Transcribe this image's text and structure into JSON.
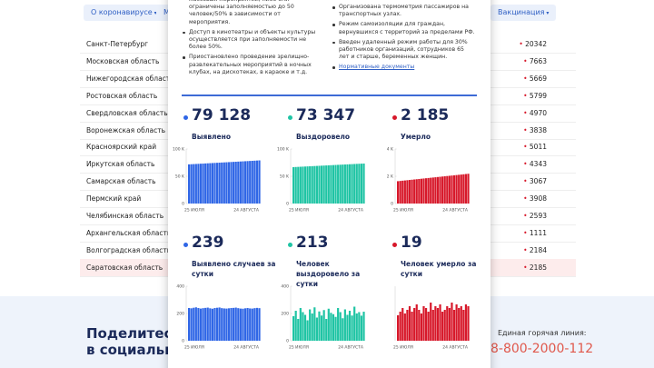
{
  "nav": {
    "items": [
      "О коронавирусе",
      "М",
      "Вакцинация"
    ]
  },
  "regions": [
    {
      "name": "Санкт-Петербург",
      "value": 20342
    },
    {
      "name": "Московская область",
      "value": 7663
    },
    {
      "name": "Нижегородская область",
      "value": 5669
    },
    {
      "name": "Ростовская область",
      "value": 5799
    },
    {
      "name": "Свердловская область",
      "value": 4970
    },
    {
      "name": "Воронежская область",
      "value": 3838
    },
    {
      "name": "Красноярский край",
      "value": 5011
    },
    {
      "name": "Иркутская область",
      "value": 4343
    },
    {
      "name": "Самарская область",
      "value": 3067
    },
    {
      "name": "Пермский край",
      "value": 3908
    },
    {
      "name": "Челябинская область",
      "value": 2593
    },
    {
      "name": "Архангельская область",
      "value": 1111
    },
    {
      "name": "Волгоградская область",
      "value": 2184
    },
    {
      "name": "Саратовская область",
      "value": 2185
    }
  ],
  "share": {
    "line1": "Поделитесь",
    "line2": "в социальны"
  },
  "hotline": {
    "label": "Единая горячая линия:",
    "phone": "8-800-2000-112"
  },
  "popup": {
    "measures_left": [
      "массовых мероприятий, либо они ограничены заполняемостью до 50 человек/50% в зависимости от мероприятия.",
      "Доступ в кинотеатры и объекты культуры осуществляется при заполняемости не более 50%.",
      "Приостановлено проведение зрелищно-развлекательных мероприятий в ночных клубах, на дискотеках, в караоке и т.д."
    ],
    "measures_right": [
      "Организована термометрия пассажиров на транспортных узлах.",
      "Режим самоизоляции для граждан, вернувшихся с территорий за пределами РФ.",
      "Введен удаленный режим работы для 30% работников организаций, сотрудников 65 лет и старше, беременных женщин."
    ],
    "link": "Нормативные документы"
  },
  "chart_data": [
    {
      "type": "bar",
      "headline": "79 128",
      "label": "Выявлено",
      "color": "#2f66e6",
      "categories": [
        "25 ИЮЛЯ",
        null,
        null,
        null,
        null,
        null,
        null,
        null,
        null,
        null,
        null,
        null,
        null,
        null,
        null,
        null,
        null,
        null,
        null,
        null,
        null,
        null,
        null,
        null,
        null,
        null,
        null,
        null,
        null,
        null,
        "24 АВГУСТА"
      ],
      "values": [
        71870,
        72110,
        72350,
        72590,
        72830,
        73070,
        73310,
        73550,
        73790,
        74030,
        74270,
        74510,
        74750,
        74990,
        75230,
        75470,
        75710,
        75950,
        76190,
        76430,
        76670,
        76910,
        77150,
        77390,
        77630,
        77870,
        78110,
        78350,
        78590,
        78889,
        79128
      ],
      "ylim": [
        0,
        100000
      ],
      "yticks": [
        0,
        {
          "value": 50000,
          "label": "50 K"
        },
        {
          "value": 100000,
          "label": "100 K"
        }
      ]
    },
    {
      "type": "bar",
      "headline": "73 347",
      "label": "Выздоровело",
      "color": "#1fc4a4",
      "categories": [
        "25 ИЮЛЯ",
        null,
        null,
        null,
        null,
        null,
        null,
        null,
        null,
        null,
        null,
        null,
        null,
        null,
        null,
        null,
        null,
        null,
        null,
        null,
        null,
        null,
        null,
        null,
        null,
        null,
        null,
        null,
        null,
        null,
        "24 АВГУСТА"
      ],
      "values": [
        66800,
        67020,
        67240,
        67460,
        67680,
        67900,
        68120,
        68340,
        68560,
        68780,
        69000,
        69220,
        69440,
        69660,
        69880,
        70100,
        70320,
        70540,
        70760,
        70980,
        71200,
        71420,
        71640,
        71860,
        72080,
        72300,
        72520,
        72740,
        72950,
        73134,
        73347
      ],
      "ylim": [
        0,
        100000
      ],
      "yticks": [
        0,
        {
          "value": 50000,
          "label": "50 K"
        },
        {
          "value": 100000,
          "label": "100 K"
        }
      ]
    },
    {
      "type": "bar",
      "headline": "2 185",
      "label": "Умерло",
      "color": "#d7182a",
      "categories": [
        "25 ИЮЛЯ",
        null,
        null,
        null,
        null,
        null,
        null,
        null,
        null,
        null,
        null,
        null,
        null,
        null,
        null,
        null,
        null,
        null,
        null,
        null,
        null,
        null,
        null,
        null,
        null,
        null,
        null,
        null,
        null,
        null,
        "24 АВГУСТА"
      ],
      "values": [
        1640,
        1658,
        1676,
        1694,
        1712,
        1730,
        1748,
        1766,
        1784,
        1802,
        1820,
        1838,
        1856,
        1874,
        1892,
        1910,
        1928,
        1946,
        1964,
        1982,
        2000,
        2018,
        2036,
        2054,
        2072,
        2090,
        2108,
        2126,
        2146,
        2166,
        2185
      ],
      "ylim": [
        0,
        4000
      ],
      "yticks": [
        0,
        {
          "value": 2000,
          "label": "2 K"
        },
        {
          "value": 4000,
          "label": "4 K"
        }
      ]
    },
    {
      "type": "bar",
      "headline": "239",
      "label": "Выявлено случаев за сутки",
      "color": "#2f66e6",
      "categories": [
        "25 ИЮЛЯ",
        null,
        null,
        null,
        null,
        null,
        null,
        null,
        null,
        null,
        null,
        null,
        null,
        null,
        null,
        null,
        null,
        null,
        null,
        null,
        null,
        null,
        null,
        null,
        null,
        null,
        null,
        null,
        null,
        null,
        "24 АВГУСТА"
      ],
      "values": [
        240,
        238,
        242,
        245,
        240,
        236,
        239,
        241,
        243,
        238,
        235,
        240,
        242,
        244,
        239,
        237,
        236,
        238,
        240,
        241,
        243,
        239,
        236,
        235,
        238,
        240,
        237,
        236,
        239,
        241,
        239
      ],
      "ylim": [
        0,
        400
      ],
      "yticks": [
        0,
        200,
        400
      ]
    },
    {
      "type": "bar",
      "headline": "213",
      "label": "Человек выздоровело за сутки",
      "color": "#1fc4a4",
      "categories": [
        "25 ИЮЛЯ",
        null,
        null,
        null,
        null,
        null,
        null,
        null,
        null,
        null,
        null,
        null,
        null,
        null,
        null,
        null,
        null,
        null,
        null,
        null,
        null,
        null,
        null,
        null,
        null,
        null,
        null,
        null,
        null,
        null,
        "24 АВГУСТА"
      ],
      "values": [
        180,
        220,
        160,
        240,
        210,
        190,
        150,
        230,
        200,
        245,
        170,
        215,
        185,
        225,
        160,
        235,
        205,
        195,
        175,
        240,
        210,
        165,
        230,
        190,
        220,
        185,
        250,
        200,
        210,
        184,
        213
      ],
      "ylim": [
        0,
        400
      ],
      "yticks": [
        0,
        200,
        400
      ]
    },
    {
      "type": "bar",
      "headline": "19",
      "label": "Человек умерло за сутки",
      "color": "#d7182a",
      "categories": [
        "25 ИЮЛЯ",
        null,
        null,
        null,
        null,
        null,
        null,
        null,
        null,
        null,
        null,
        null,
        null,
        null,
        null,
        null,
        null,
        null,
        null,
        null,
        null,
        null,
        null,
        null,
        null,
        null,
        null,
        null,
        null,
        null,
        "24 АВГУСТА"
      ],
      "values": [
        14,
        16,
        18,
        15,
        17,
        19,
        16,
        18,
        20,
        17,
        15,
        19,
        18,
        16,
        21,
        17,
        19,
        18,
        20,
        16,
        17,
        19,
        18,
        21,
        17,
        20,
        18,
        19,
        17,
        20,
        19
      ],
      "ylim": [
        0,
        30
      ]
    }
  ]
}
